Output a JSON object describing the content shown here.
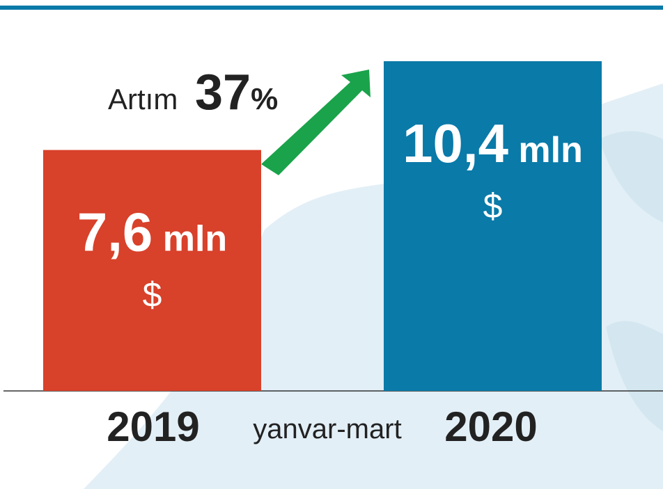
{
  "chart_data": {
    "type": "bar",
    "categories": [
      "2019",
      "2020"
    ],
    "values": [
      7.6,
      10.4
    ],
    "value_labels": [
      "7,6 mln",
      "10,4 mln"
    ],
    "unit": "$",
    "colors": [
      "#d8412a",
      "#0a7aa8"
    ],
    "x_label": "yanvar-mart",
    "annotation": {
      "text": "Artım",
      "value": "37%"
    }
  }
}
